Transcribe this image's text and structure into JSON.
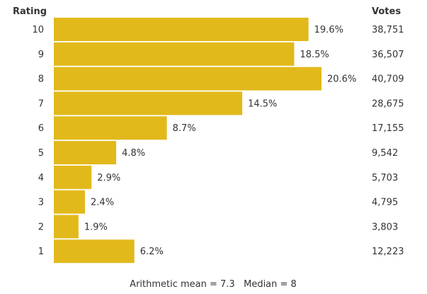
{
  "header": {
    "rating_label": "Rating",
    "votes_label": "Votes"
  },
  "footer": {
    "summary": "Arithmetic mean = 7.3   Median = 8"
  },
  "colors": {
    "bar": "#E2B91B",
    "text": "#333333"
  },
  "chart_data": {
    "type": "bar",
    "orientation": "horizontal",
    "categories": [
      "10",
      "9",
      "8",
      "7",
      "6",
      "5",
      "4",
      "3",
      "2",
      "1"
    ],
    "series": [
      {
        "values": [
          19.6,
          18.5,
          20.6,
          14.5,
          8.7,
          4.8,
          2.9,
          2.4,
          1.9,
          6.2
        ]
      }
    ],
    "data_labels": [
      "19.6%",
      "18.5%",
      "20.6%",
      "14.5%",
      "8.7%",
      "4.8%",
      "2.9%",
      "2.4%",
      "1.9%",
      "6.2%"
    ],
    "votes": [
      "38,751",
      "36,507",
      "40,709",
      "28,675",
      "17,155",
      "9,542",
      "5,703",
      "4,795",
      "3,803",
      "12,223"
    ],
    "xlim": [
      0,
      20.6
    ],
    "grid": false,
    "legend": "none"
  }
}
